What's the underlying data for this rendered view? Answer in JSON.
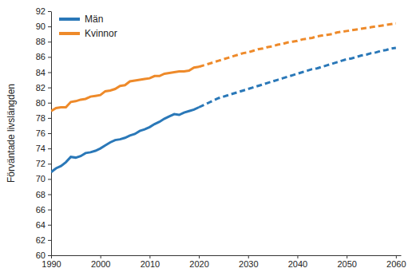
{
  "chart_data": {
    "type": "line",
    "y_label": "Förväntade livslängden",
    "x": [
      1990,
      1991,
      1992,
      1993,
      1994,
      1995,
      1996,
      1997,
      1998,
      1999,
      2000,
      2001,
      2002,
      2003,
      2004,
      2005,
      2006,
      2007,
      2008,
      2009,
      2010,
      2011,
      2012,
      2013,
      2014,
      2015,
      2016,
      2017,
      2018,
      2019,
      2020,
      2021,
      2022,
      2023,
      2024,
      2025,
      2026,
      2027,
      2028,
      2029,
      2030,
      2031,
      2032,
      2033,
      2034,
      2035,
      2036,
      2037,
      2038,
      2039,
      2040,
      2041,
      2042,
      2043,
      2044,
      2045,
      2046,
      2047,
      2048,
      2049,
      2050,
      2051,
      2052,
      2053,
      2054,
      2055,
      2056,
      2057,
      2058,
      2059,
      2060
    ],
    "series": [
      {
        "name": "Män",
        "color": "#2a78b8",
        "line_style": "solid",
        "values": [
          70.9,
          71.4,
          71.7,
          72.2,
          72.9,
          72.8,
          73.0,
          73.4,
          73.5,
          73.7,
          74.0,
          74.4,
          74.8,
          75.1,
          75.2,
          75.4,
          75.7,
          75.9,
          76.3,
          76.5,
          76.8,
          77.2,
          77.5,
          77.9,
          78.2,
          78.5,
          78.4,
          78.7,
          78.9,
          79.1,
          79.4,
          null,
          null,
          null,
          null,
          null,
          null,
          null,
          null,
          null,
          null,
          null,
          null,
          null,
          null,
          null,
          null,
          null,
          null,
          null,
          null,
          null,
          null,
          null,
          null,
          null,
          null,
          null,
          null,
          null,
          null,
          null,
          null,
          null,
          null,
          null,
          null,
          null,
          null,
          null,
          null
        ]
      },
      {
        "name": "Kvinnor",
        "color": "#ee8a2a",
        "line_style": "solid",
        "values": [
          78.9,
          79.3,
          79.4,
          79.4,
          80.1,
          80.2,
          80.4,
          80.5,
          80.8,
          80.9,
          81.0,
          81.5,
          81.6,
          81.8,
          82.2,
          82.3,
          82.8,
          82.9,
          83.0,
          83.1,
          83.2,
          83.5,
          83.5,
          83.8,
          83.9,
          84.0,
          84.1,
          84.1,
          84.2,
          84.6,
          84.7,
          null,
          null,
          null,
          null,
          null,
          null,
          null,
          null,
          null,
          null,
          null,
          null,
          null,
          null,
          null,
          null,
          null,
          null,
          null,
          null,
          null,
          null,
          null,
          null,
          null,
          null,
          null,
          null,
          null,
          null,
          null,
          null,
          null,
          null,
          null,
          null,
          null,
          null,
          null,
          null
        ]
      },
      {
        "color": "#2a78b8",
        "line_style": "dashed",
        "values": [
          null,
          null,
          null,
          null,
          null,
          null,
          null,
          null,
          null,
          null,
          null,
          null,
          null,
          null,
          null,
          null,
          null,
          null,
          null,
          null,
          null,
          null,
          null,
          null,
          null,
          null,
          null,
          null,
          null,
          null,
          79.4,
          79.7,
          80.0,
          80.3,
          80.6,
          80.8,
          81.0,
          81.2,
          81.4,
          81.6,
          81.8,
          82.0,
          82.2,
          82.4,
          82.6,
          82.8,
          83.0,
          83.2,
          83.4,
          83.6,
          83.8,
          84.0,
          84.2,
          84.4,
          84.5,
          84.7,
          84.9,
          85.1,
          85.3,
          85.5,
          85.7,
          85.8,
          86.0,
          86.2,
          86.3,
          86.5,
          86.6,
          86.8,
          86.9,
          87.1,
          87.2
        ]
      },
      {
        "color": "#ee8a2a",
        "line_style": "dashed",
        "values": [
          null,
          null,
          null,
          null,
          null,
          null,
          null,
          null,
          null,
          null,
          null,
          null,
          null,
          null,
          null,
          null,
          null,
          null,
          null,
          null,
          null,
          null,
          null,
          null,
          null,
          null,
          null,
          null,
          null,
          null,
          84.7,
          84.9,
          85.1,
          85.3,
          85.5,
          85.7,
          85.9,
          86.1,
          86.3,
          86.5,
          86.6,
          86.8,
          87.0,
          87.1,
          87.3,
          87.4,
          87.6,
          87.7,
          87.9,
          88.0,
          88.1,
          88.3,
          88.4,
          88.5,
          88.7,
          88.8,
          88.9,
          89.0,
          89.2,
          89.3,
          89.4,
          89.5,
          89.6,
          89.7,
          89.8,
          89.9,
          90.0,
          90.1,
          90.2,
          90.3,
          90.4
        ]
      }
    ],
    "xlim": [
      1990,
      2061
    ],
    "xticks": [
      1990,
      2000,
      2010,
      2020,
      2030,
      2040,
      2050,
      2060
    ],
    "ylim": [
      60,
      92
    ],
    "yticks": [
      60,
      62,
      64,
      66,
      68,
      70,
      72,
      74,
      76,
      78,
      80,
      82,
      84,
      86,
      88,
      90,
      92
    ],
    "grid": false,
    "legend": "top-left"
  }
}
